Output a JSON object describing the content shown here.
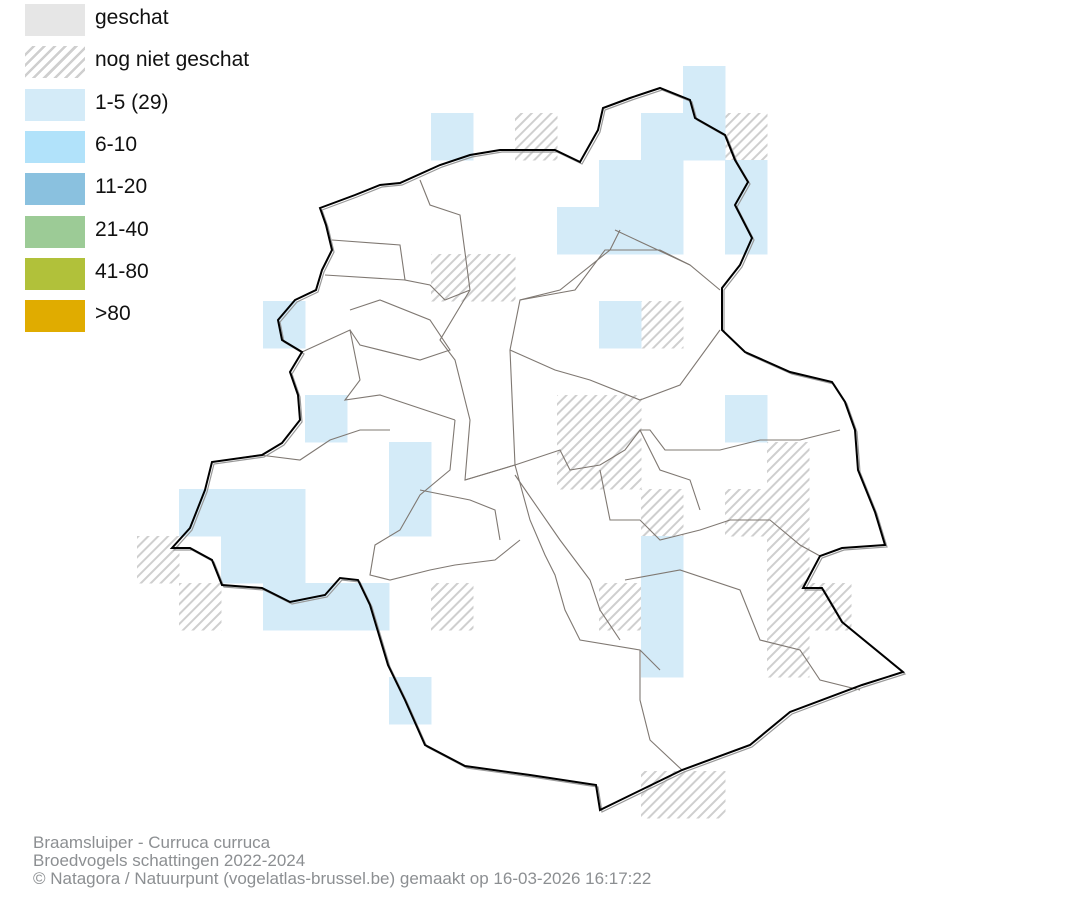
{
  "legend": {
    "items": [
      {
        "label": "geschat",
        "color": "#e6e6e6",
        "pattern": "solid"
      },
      {
        "label": "nog niet geschat",
        "color": "#cfcfcf",
        "pattern": "hatched"
      },
      {
        "label": "1-5 (29)",
        "color": "#d4ebf8",
        "pattern": "solid"
      },
      {
        "label": "6-10",
        "color": "#b1e2fa",
        "pattern": "solid"
      },
      {
        "label": "11-20",
        "color": "#8ac1df",
        "pattern": "solid"
      },
      {
        "label": "21-40",
        "color": "#9ccb96",
        "pattern": "solid"
      },
      {
        "label": "41-80",
        "color": "#b1c13a",
        "pattern": "solid"
      },
      {
        "label": ">80",
        "color": "#e0ac00",
        "pattern": "solid"
      }
    ]
  },
  "footer": {
    "species": "Braamsluiper - Curruca curruca",
    "dataset": "Broedvogels schattingen 2022-2024",
    "credit": "© Natagora / Natuurpunt (vogelatlas-brussel.be) gemaakt op 16-03-2026 16:17:22"
  }
}
